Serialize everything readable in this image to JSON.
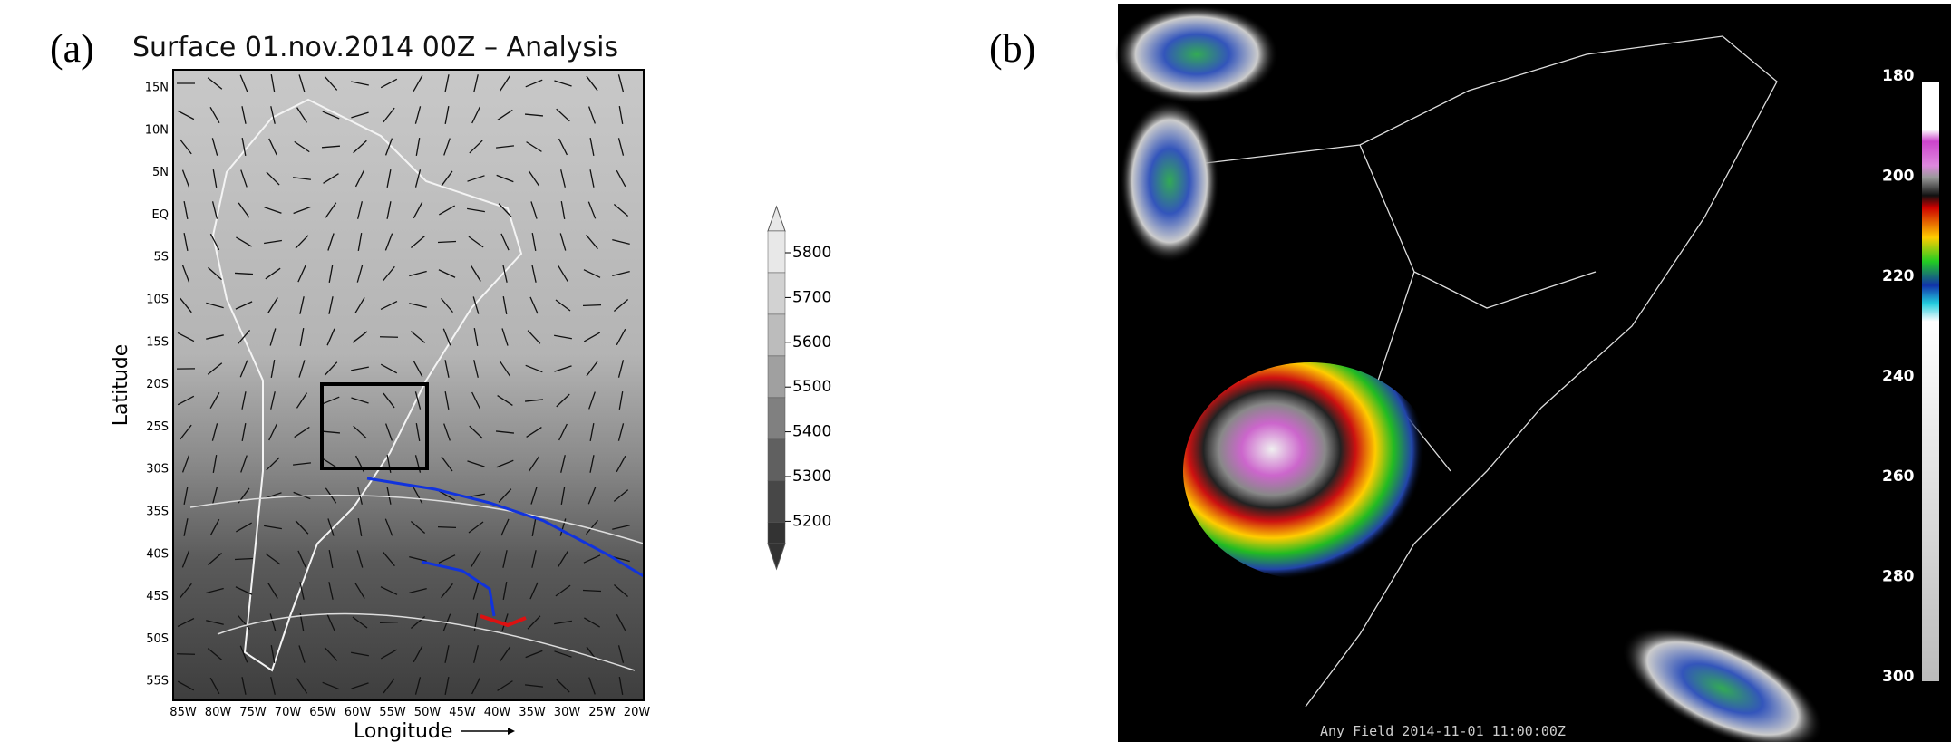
{
  "panel_a": {
    "label": "(a)",
    "title": "Surface 01.nov.2014  00Z – Analysis",
    "y_axis_label": "Latitude",
    "x_axis_label": "Longitude",
    "lat_ticks": [
      "15N",
      "10N",
      "5N",
      "EQ",
      "5S",
      "10S",
      "15S",
      "20S",
      "25S",
      "30S",
      "35S",
      "40S",
      "45S",
      "50S",
      "55S"
    ],
    "lon_ticks": [
      "85W",
      "80W",
      "75W",
      "70W",
      "65W",
      "60W",
      "55W",
      "50W",
      "45W",
      "40W",
      "35W",
      "30W",
      "25W",
      "20W"
    ],
    "colorbar_ticks": [
      5800,
      5700,
      5600,
      5500,
      5400,
      5300,
      5200
    ]
  },
  "panel_b": {
    "label": "(b)",
    "timestamp": "Any Field 2014-11-01 11:00:00Z",
    "colorbar_ticks": [
      180,
      200,
      220,
      240,
      260,
      280,
      300
    ]
  }
}
